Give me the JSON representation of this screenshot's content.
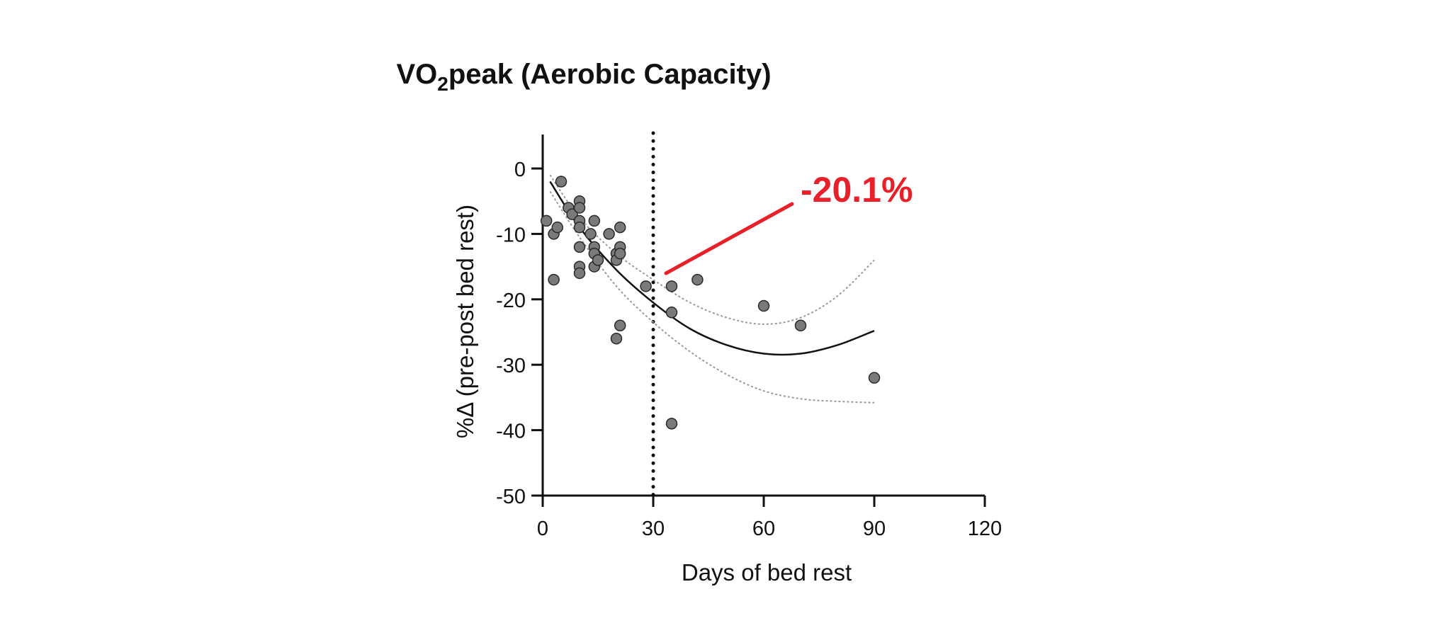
{
  "chart_data": {
    "type": "scatter",
    "title_main": "VO",
    "title_sub": "2",
    "title_rest": "peak (Aerobic Capacity)",
    "xlabel": "Days of bed rest",
    "ylabel": "%Δ (pre-post bed rest)",
    "xlim": [
      0,
      120
    ],
    "ylim": [
      -50,
      5
    ],
    "xticks": [
      0,
      30,
      60,
      90,
      120
    ],
    "yticks": [
      0,
      -10,
      -20,
      -30,
      -40,
      -50
    ],
    "reference_line_x": 30,
    "annotation": "-20.1%",
    "annotation_color": "#e8202a",
    "annotation_point": [
      30,
      -16
    ],
    "points": [
      {
        "x": 1,
        "y": -8
      },
      {
        "x": 3,
        "y": -10
      },
      {
        "x": 4,
        "y": -9
      },
      {
        "x": 3,
        "y": -17
      },
      {
        "x": 5,
        "y": -2
      },
      {
        "x": 7,
        "y": -6
      },
      {
        "x": 8,
        "y": -7
      },
      {
        "x": 10,
        "y": -5
      },
      {
        "x": 10,
        "y": -6
      },
      {
        "x": 10,
        "y": -8
      },
      {
        "x": 10,
        "y": -9
      },
      {
        "x": 10,
        "y": -12
      },
      {
        "x": 10,
        "y": -15
      },
      {
        "x": 10,
        "y": -16
      },
      {
        "x": 13,
        "y": -10
      },
      {
        "x": 14,
        "y": -8
      },
      {
        "x": 14,
        "y": -12
      },
      {
        "x": 14,
        "y": -13
      },
      {
        "x": 14,
        "y": -15
      },
      {
        "x": 15,
        "y": -14
      },
      {
        "x": 18,
        "y": -10
      },
      {
        "x": 20,
        "y": -13
      },
      {
        "x": 20,
        "y": -14
      },
      {
        "x": 21,
        "y": -9
      },
      {
        "x": 21,
        "y": -12
      },
      {
        "x": 21,
        "y": -13
      },
      {
        "x": 20,
        "y": -26
      },
      {
        "x": 21,
        "y": -24
      },
      {
        "x": 28,
        "y": -18
      },
      {
        "x": 35,
        "y": -18
      },
      {
        "x": 35,
        "y": -22
      },
      {
        "x": 35,
        "y": -39
      },
      {
        "x": 42,
        "y": -17
      },
      {
        "x": 60,
        "y": -21
      },
      {
        "x": 70,
        "y": -24
      },
      {
        "x": 90,
        "y": -32
      }
    ],
    "fit_curve": {
      "x": [
        2,
        10,
        20,
        30,
        40,
        50,
        60,
        70,
        80,
        90
      ],
      "y": [
        -2,
        -9,
        -15.5,
        -20.5,
        -24.5,
        -27,
        -28.3,
        -28.3,
        -27,
        -24.8
      ]
    },
    "ci_upper": {
      "x": [
        2,
        10,
        20,
        30,
        40,
        50,
        60,
        70,
        80,
        90
      ],
      "y": [
        -1,
        -7.5,
        -13,
        -17,
        -20.5,
        -22.8,
        -23.8,
        -22.8,
        -19.5,
        -14
      ]
    },
    "ci_lower": {
      "x": [
        2,
        10,
        20,
        30,
        40,
        50,
        60,
        70,
        80,
        90
      ],
      "y": [
        -3.5,
        -10.5,
        -18,
        -23.5,
        -28,
        -31.5,
        -34,
        -35.2,
        -35.6,
        -35.8
      ]
    },
    "grid": false,
    "point_color": "#7a7a7a"
  }
}
